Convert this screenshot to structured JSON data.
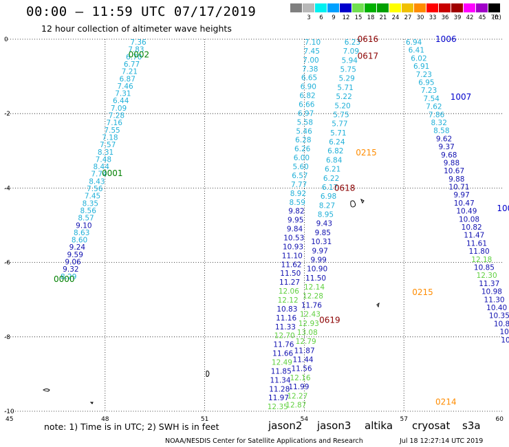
{
  "header": {
    "title": "00:00 – 11:59 UTC 07/17/2019",
    "subtitle": "12 hour collection of altimeter wave heights"
  },
  "color_scale": {
    "unit": "(ft)",
    "bins": [
      {
        "label": "",
        "color": "#808080"
      },
      {
        "label": "3",
        "color": "#b8b8b8"
      },
      {
        "label": "6",
        "color": "#00f0f0"
      },
      {
        "label": "9",
        "color": "#00a0ff"
      },
      {
        "label": "12",
        "color": "#0000cc"
      },
      {
        "label": "15",
        "color": "#70e050"
      },
      {
        "label": "18",
        "color": "#00b000"
      },
      {
        "label": "21",
        "color": "#00a000"
      },
      {
        "label": "24",
        "color": "#ffff00"
      },
      {
        "label": "27",
        "color": "#f0c000"
      },
      {
        "label": "30",
        "color": "#ff8c00"
      },
      {
        "label": "33",
        "color": "#ff0000"
      },
      {
        "label": "36",
        "color": "#c80000"
      },
      {
        "label": "39",
        "color": "#a00000"
      },
      {
        "label": "42",
        "color": "#ff00ff"
      },
      {
        "label": "45",
        "color": "#a000c8"
      },
      {
        "label": "70",
        "color": "#000000"
      }
    ]
  },
  "map": {
    "lon_ticks": [
      "45",
      "48",
      "51",
      "54",
      "57",
      "60"
    ],
    "lat_ticks": [
      "0",
      "-2",
      "-4",
      "-6",
      "-8",
      "-10"
    ],
    "tracks": [
      {
        "id": "0002",
        "label_color": "#008000",
        "label_pos": [
          48.7,
          -0.42
        ]
      },
      {
        "id": "0001",
        "label_color": "#008000",
        "label_pos": [
          47.9,
          -3.6
        ]
      },
      {
        "id": "0000",
        "label_color": "#008000",
        "label_pos": [
          46.45,
          -6.45
        ]
      },
      {
        "id": "0616",
        "label_color": "#8b0000",
        "label_pos": [
          55.6,
          0.0
        ]
      },
      {
        "id": "0617",
        "label_color": "#8b0000",
        "label_pos": [
          55.6,
          -0.45
        ]
      },
      {
        "id": "1006",
        "label_color": "#0000cc",
        "label_pos": [
          57.95,
          0.0
        ]
      },
      {
        "id": "1007",
        "label_color": "#0000cc",
        "label_pos": [
          58.4,
          -1.55
        ]
      },
      {
        "id": "0215",
        "label_color": "#ff8c00",
        "label_pos": [
          55.55,
          -3.05
        ]
      },
      {
        "id": "0618",
        "label_color": "#8b0000",
        "label_pos": [
          54.9,
          -4.0
        ]
      },
      {
        "id": "100",
        "label_color": "#0000cc",
        "label_pos": [
          59.8,
          -4.55
        ]
      },
      {
        "id": "0215",
        "label_color": "#ff8c00",
        "label_pos": [
          57.25,
          -6.8
        ]
      },
      {
        "id": "0619",
        "label_color": "#8b0000",
        "label_pos": [
          54.45,
          -7.55
        ]
      },
      {
        "id": "0214",
        "label_color": "#ff8c00",
        "label_pos": [
          57.95,
          -9.75
        ]
      }
    ],
    "observations": [
      {
        "track": "0002",
        "lon0": 49.0,
        "lat0": 0.0,
        "lon1": 46.9,
        "lat1": -6.3,
        "values": [
          "7.36",
          "7.83",
          "6.70",
          "6.77",
          "7.21",
          "6.87",
          "7.46",
          "7.31",
          "6.44",
          "7.09",
          "7.28",
          "7.16",
          "7.55",
          "7.18",
          "7.57",
          "8.31",
          "7.48",
          "8.44",
          "7.74",
          "8.43",
          "7.56",
          "7.45",
          "8.35",
          "8.56",
          "8.57",
          "9.10",
          "8.63",
          "8.60",
          "9.24",
          "9.59",
          "9.06",
          "9.32",
          "8.29"
        ]
      },
      {
        "track": "0616",
        "lon0": 55.45,
        "lat0": 0.0,
        "lon1": 53.75,
        "lat1": -9.75,
        "values": [
          "6.23",
          "7.09",
          "5.94",
          "5.75",
          "5.29",
          "5.71",
          "5.22",
          "5.20",
          "5.75",
          "5.77",
          "5.71",
          "6.24",
          "6.82",
          "6.84",
          "6.21",
          "6.22",
          "6.17",
          "6.98",
          "8.27",
          "8.95",
          "9.43",
          "9.85",
          "10.31",
          "9.97",
          "9.99",
          "10.90",
          "11.50",
          "12.14",
          "12.28",
          "11.76",
          "12.43",
          "12.93",
          "13.08",
          "12.79",
          "11.87",
          "11.44",
          "11.56",
          "12.16",
          "11.99",
          "12.27",
          "12.87"
        ]
      },
      {
        "track": "0617",
        "lon0": 54.25,
        "lat0": 0.0,
        "lon1": 53.2,
        "lat1": -9.8,
        "values": [
          "7.10",
          "7.45",
          "7.00",
          "7.38",
          "6.65",
          "6.90",
          "6.82",
          "6.66",
          "6.97",
          "5.58",
          "5.46",
          "6.28",
          "6.26",
          "6.00",
          "5.60",
          "6.57",
          "7.77",
          "8.92",
          "8.59",
          "9.82",
          "9.95",
          "9.84",
          "10.53",
          "10.93",
          "11.10",
          "11.62",
          "11.50",
          "11.27",
          "12.06",
          "12.12",
          "10.83",
          "11.16",
          "11.33",
          "12.70",
          "11.76",
          "11.66",
          "12.49",
          "11.85",
          "11.34",
          "11.28",
          "11.97",
          "12.35"
        ]
      },
      {
        "track": "1006",
        "lon0": 57.3,
        "lat0": 0.0,
        "lon1": 60.1,
        "lat1": -8.0,
        "values": [
          "6.94",
          "6.41",
          "6.02",
          "6.91",
          "7.23",
          "6.95",
          "7.23",
          "7.54",
          "7.62",
          "7.86",
          "8.32",
          "8.58",
          "9.62",
          "9.37",
          "9.68",
          "9.88",
          "10.67",
          "9.88",
          "10.71",
          "9.97",
          "10.47",
          "10.49",
          "10.08",
          "10.82",
          "11.47",
          "11.61",
          "11.80",
          "12.18",
          "10.85",
          "12.30",
          "11.37",
          "10.98",
          "11.30",
          "10.40",
          "10.35",
          "10.8",
          "10",
          "10"
        ]
      }
    ],
    "coastline_labels": []
  },
  "footer": {
    "note": "note: 1) Time is in UTC; 2) SWH is in feet",
    "satellites": [
      {
        "name": "jason2",
        "color": "#0000cc"
      },
      {
        "name": "jason3",
        "color": "#008000"
      },
      {
        "name": "altika",
        "color": "#ff8c00"
      },
      {
        "name": "cryosat",
        "color": "#cc0000"
      },
      {
        "name": "s3a",
        "color": "#8b0000"
      }
    ],
    "credit": "NOAA/NESDIS Center for Satellite Applications and Research",
    "generated": "Jul 18 12:27:14 UTC 2019"
  }
}
